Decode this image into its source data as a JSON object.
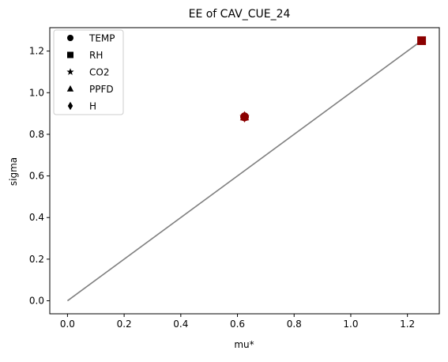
{
  "chart_data": {
    "type": "scatter",
    "title": "EE of CAV_CUE_24",
    "xlabel": "mu*",
    "ylabel": "sigma",
    "xlim": [
      -0.0625,
      1.3125
    ],
    "ylim": [
      -0.0625,
      1.3125
    ],
    "xticks": [
      {
        "value": 0.0,
        "label": "0.0"
      },
      {
        "value": 0.2,
        "label": "0.2"
      },
      {
        "value": 0.4,
        "label": "0.4"
      },
      {
        "value": 0.6,
        "label": "0.6"
      },
      {
        "value": 0.8,
        "label": "0.8"
      },
      {
        "value": 1.0,
        "label": "1.0"
      },
      {
        "value": 1.2,
        "label": "1.2"
      }
    ],
    "yticks": [
      {
        "value": 0.0,
        "label": "0.0"
      },
      {
        "value": 0.2,
        "label": "0.2"
      },
      {
        "value": 0.4,
        "label": "0.4"
      },
      {
        "value": 0.6,
        "label": "0.6"
      },
      {
        "value": 0.8,
        "label": "0.8"
      },
      {
        "value": 1.0,
        "label": "1.0"
      },
      {
        "value": 1.2,
        "label": "1.2"
      }
    ],
    "grid": false,
    "legend_position": "top-left",
    "reference_line": {
      "x": [
        0.0,
        1.25
      ],
      "y": [
        0.0,
        1.25
      ],
      "color": "#808080"
    },
    "marker_color": "#8b0000",
    "series": [
      {
        "name": "TEMP",
        "marker": "circle",
        "x": 0.625,
        "y": 0.884
      },
      {
        "name": "RH",
        "marker": "square",
        "x": 1.25,
        "y": 1.25
      },
      {
        "name": "CO2",
        "marker": "star",
        "x": 0.625,
        "y": 0.884
      },
      {
        "name": "PPFD",
        "marker": "triangle",
        "x": 0.625,
        "y": 0.884
      },
      {
        "name": "H",
        "marker": "diamond",
        "x": 0.625,
        "y": 0.884
      }
    ]
  }
}
